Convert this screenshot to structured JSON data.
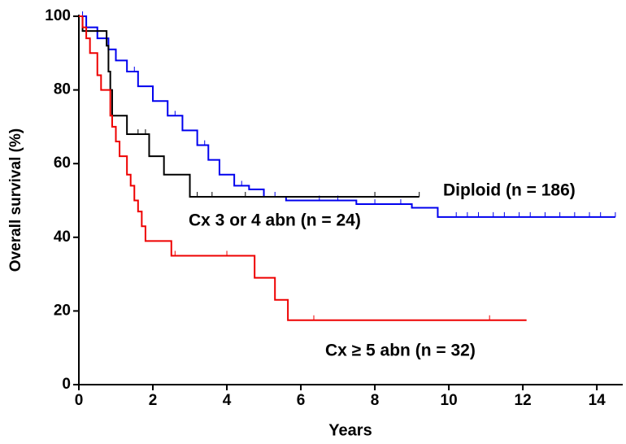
{
  "chart_data": {
    "type": "line",
    "step": true,
    "x_label": "Years",
    "y_label": "Overall survival (%)",
    "xlim": [
      0,
      14.7
    ],
    "ylim": [
      0,
      100
    ],
    "xticks": [
      0,
      2,
      4,
      6,
      8,
      10,
      12,
      14
    ],
    "yticks": [
      0,
      20,
      40,
      60,
      80,
      100
    ],
    "series": [
      {
        "name": "Diploid (n = 186)",
        "color": "#0000ee",
        "x": [
          0,
          0.2,
          0.5,
          0.8,
          1.0,
          1.3,
          1.6,
          2.0,
          2.4,
          2.8,
          3.2,
          3.5,
          3.8,
          4.2,
          4.6,
          5.0,
          5.6,
          7.5,
          9.0,
          9.7,
          14.5
        ],
        "values": [
          100,
          97,
          94,
          91,
          88,
          85,
          81,
          77,
          73,
          69,
          65,
          61,
          57,
          54,
          53,
          51,
          50,
          49,
          48,
          45.5,
          45.5
        ],
        "censor_x": [
          0.1,
          1.5,
          2.6,
          3.4,
          4.4,
          5.3,
          6.5,
          7.0,
          8.0,
          8.7,
          10.2,
          10.5,
          10.8,
          11.2,
          11.5,
          11.9,
          12.2,
          12.6,
          13.0,
          13.4,
          13.8,
          14.1,
          14.5
        ]
      },
      {
        "name": "Cx 3 or 4 abn (n = 24)",
        "color": "#000000",
        "x": [
          0,
          0.1,
          0.75,
          0.8,
          0.85,
          0.9,
          1.3,
          1.9,
          2.3,
          3.0,
          9.2
        ],
        "values": [
          100,
          96,
          92,
          85,
          80,
          73,
          68,
          62,
          57,
          51,
          51
        ],
        "censor_x": [
          1.6,
          1.8,
          3.2,
          3.6,
          4.5,
          8.0,
          9.2
        ]
      },
      {
        "name": "Cx ≥ 5 abn (n = 32)",
        "color": "#ee0000",
        "x": [
          0,
          0.1,
          0.2,
          0.3,
          0.5,
          0.6,
          0.85,
          0.9,
          1.0,
          1.1,
          1.3,
          1.4,
          1.5,
          1.6,
          1.7,
          1.8,
          2.5,
          4.75,
          5.3,
          5.65,
          12.1
        ],
        "values": [
          100,
          97,
          94,
          90,
          84,
          80,
          73,
          70,
          66,
          62,
          57,
          54,
          50,
          47,
          43,
          39,
          35,
          29,
          23,
          17.5,
          17.5
        ],
        "censor_x": [
          2.6,
          4.0,
          6.35,
          11.1
        ]
      }
    ]
  }
}
